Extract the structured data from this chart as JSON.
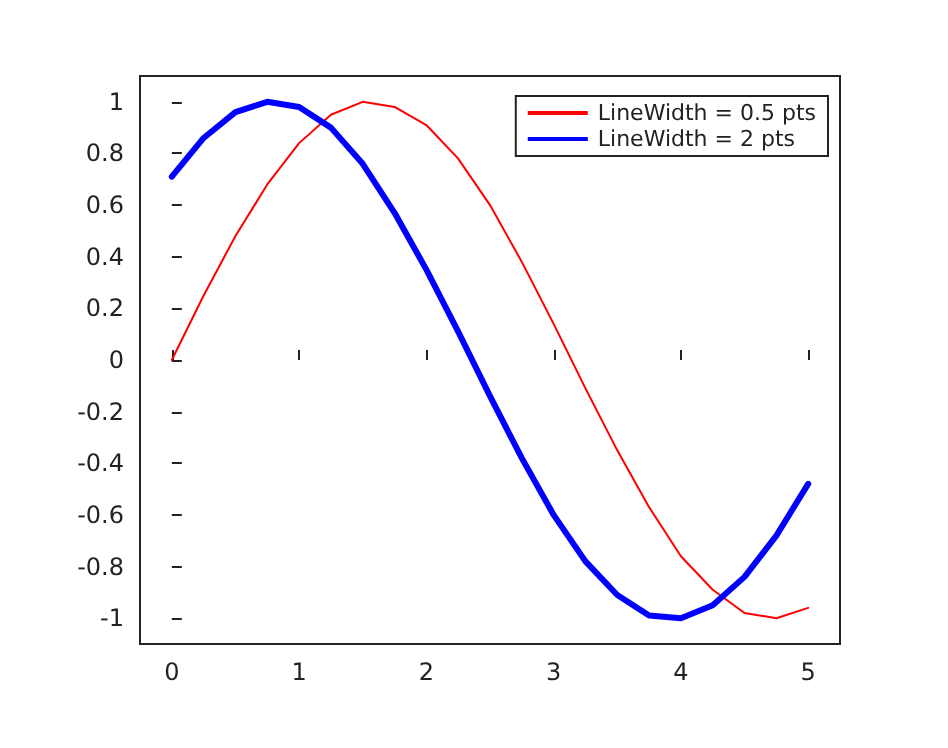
{
  "chart_data": {
    "type": "line",
    "xlim": [
      -0.25,
      5.25
    ],
    "xticks": [
      0,
      1,
      2,
      3,
      4,
      5
    ],
    "ylim": [
      -1.1,
      1.1
    ],
    "yticks": [
      -1,
      -0.8,
      -0.6,
      -0.4,
      -0.2,
      0,
      0.2,
      0.4,
      0.6,
      0.8,
      1
    ],
    "grid": false,
    "legend": "top right",
    "marker": "none",
    "line_style": "solid",
    "x": [
      0,
      0.25,
      0.5,
      0.75,
      1,
      1.25,
      1.5,
      1.75,
      2,
      2.25,
      2.5,
      2.75,
      3,
      3.25,
      3.5,
      3.75,
      4,
      4.25,
      4.5,
      4.75,
      5
    ],
    "series": [
      {
        "name": "LineWidth = 0.5 pts",
        "color": "#ff0000",
        "values": [
          0,
          0.25,
          0.48,
          0.68,
          0.84,
          0.95,
          1,
          0.98,
          0.91,
          0.78,
          0.6,
          0.38,
          0.14,
          -0.11,
          -0.35,
          -0.57,
          -0.76,
          -0.89,
          -0.98,
          -1,
          -0.96
        ]
      },
      {
        "name": "LineWidth = 2 pts",
        "color": "#0000ff",
        "values": [
          0.71,
          0.86,
          0.96,
          1,
          0.98,
          0.9,
          0.76,
          0.57,
          0.35,
          0.11,
          -0.14,
          -0.38,
          -0.6,
          -0.78,
          -0.91,
          -0.99,
          -1,
          -0.95,
          -0.84,
          -0.68,
          -0.48
        ]
      }
    ]
  }
}
